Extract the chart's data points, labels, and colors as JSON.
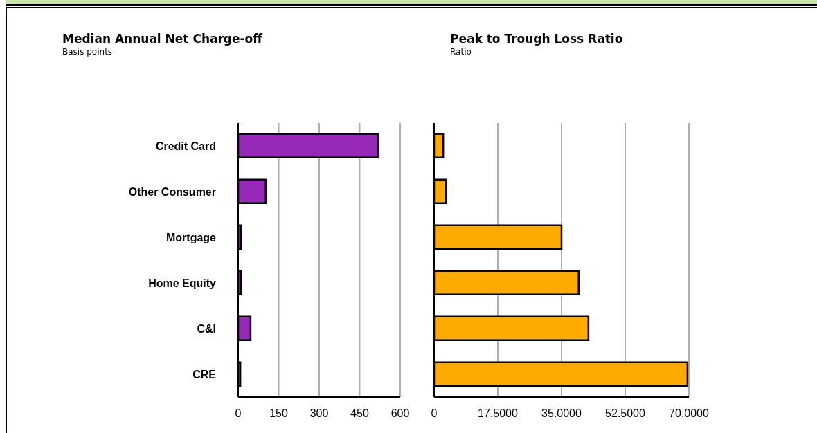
{
  "chart_data": [
    {
      "type": "bar",
      "orientation": "horizontal",
      "title": "Median Annual Net Charge-off",
      "subtitle": "Basis points",
      "categories": [
        "Credit Card",
        "Other Consumer",
        "Mortgage",
        "Home Equity",
        "C&I",
        "CRE"
      ],
      "values": [
        517,
        102,
        10,
        10,
        46,
        8
      ],
      "color": "#9629b8",
      "xlim": [
        0,
        600
      ],
      "xticks": [
        0,
        150,
        300,
        450,
        600
      ],
      "grid": "x"
    },
    {
      "type": "bar",
      "orientation": "horizontal",
      "title": "Peak to Trough Loss Ratio",
      "subtitle": "Ratio",
      "categories": [
        null,
        null,
        null,
        null,
        null,
        null
      ],
      "values": [
        2.5,
        3.2,
        35,
        39.7,
        42.4,
        69.6
      ],
      "color": "#ffaa00",
      "xlim": [
        0,
        70
      ],
      "xticks": [
        0,
        {
          "value": 17.5,
          "label": "17.5000"
        },
        {
          "value": 35,
          "label": "35.0000"
        },
        {
          "value": 52.5,
          "label": "52.5000"
        },
        {
          "value": 70,
          "label": "70.0000"
        }
      ],
      "grid": "x",
      "tick_labels": "x"
    }
  ]
}
